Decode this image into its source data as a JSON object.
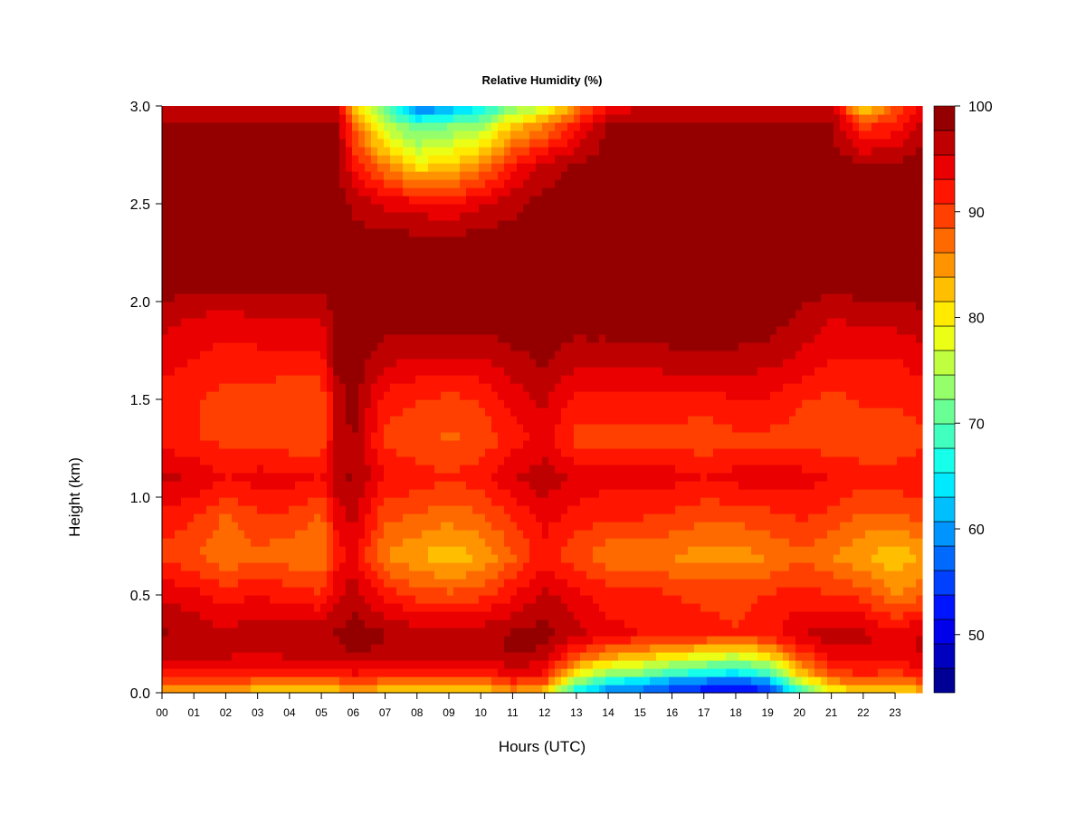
{
  "chart_data": {
    "type": "heatmap",
    "title": "Relative Humidity (%)",
    "xlabel": "Hours (UTC)",
    "ylabel": "Height (km)",
    "x_ticks": [
      "00",
      "01",
      "02",
      "03",
      "04",
      "05",
      "06",
      "07",
      "08",
      "09",
      "10",
      "11",
      "12",
      "13",
      "14",
      "15",
      "16",
      "17",
      "18",
      "19",
      "20",
      "21",
      "22",
      "23"
    ],
    "y_ticks": [
      "0.0",
      "0.5",
      "1.0",
      "1.5",
      "2.0",
      "2.5",
      "3.0"
    ],
    "xlim": [
      0,
      23.85
    ],
    "ylim": [
      0,
      3.0
    ],
    "x_hours": [
      0,
      1,
      2,
      3,
      4,
      5,
      5.5,
      6,
      7,
      8,
      9,
      10,
      11,
      12,
      13,
      14,
      15,
      16,
      17,
      18,
      19,
      20,
      21,
      22,
      23,
      23.85
    ],
    "y_km": [
      0,
      0.05,
      0.1,
      0.2,
      0.3,
      0.5,
      0.7,
      0.9,
      1.1,
      1.3,
      1.5,
      1.7,
      1.9,
      2.1,
      2.3,
      2.5,
      2.7,
      2.9,
      3.0
    ],
    "rh_columns": [
      [
        82,
        88,
        92,
        96,
        98,
        95,
        90,
        92,
        96,
        92,
        92,
        94,
        96,
        99,
        99,
        99,
        99,
        98,
        96
      ],
      [
        82,
        88,
        92,
        96,
        97,
        94,
        89,
        91,
        95,
        91,
        91,
        93,
        95,
        99,
        99,
        99,
        99,
        98,
        96
      ],
      [
        82,
        88,
        92,
        96,
        96,
        92,
        86,
        88,
        93,
        90,
        90,
        92,
        94,
        99,
        99,
        99,
        99,
        98,
        96
      ],
      [
        81,
        87,
        92,
        95,
        97,
        93,
        88,
        90,
        94,
        90,
        90,
        92,
        95,
        99,
        99,
        99,
        99,
        98,
        96
      ],
      [
        81,
        87,
        92,
        96,
        97,
        92,
        87,
        90,
        94,
        89,
        89,
        92,
        95,
        99,
        99,
        99,
        99,
        98,
        96
      ],
      [
        81,
        87,
        92,
        96,
        97,
        91,
        86,
        88,
        93,
        89,
        89,
        92,
        95,
        99,
        99,
        99,
        99,
        98,
        97
      ],
      [
        81,
        87,
        92,
        97,
        98,
        95,
        92,
        94,
        97,
        96,
        96,
        99,
        99,
        99,
        99,
        99,
        99,
        98,
        96
      ],
      [
        82,
        88,
        93,
        98,
        99,
        97,
        94,
        96,
        98,
        98,
        99,
        99,
        99,
        99,
        99,
        97,
        93,
        88,
        82
      ],
      [
        81,
        87,
        92,
        97,
        98,
        92,
        86,
        89,
        93,
        90,
        92,
        96,
        99,
        99,
        99,
        95,
        86,
        76,
        70
      ],
      [
        80,
        86,
        91,
        96,
        97,
        90,
        84,
        88,
        92,
        89,
        91,
        95,
        99,
        99,
        99,
        94,
        80,
        70,
        56
      ],
      [
        80,
        86,
        91,
        96,
        97,
        89,
        82,
        87,
        91,
        88,
        90,
        95,
        99,
        99,
        99,
        93,
        82,
        72,
        60
      ],
      [
        80,
        86,
        91,
        96,
        97,
        90,
        84,
        88,
        92,
        89,
        91,
        95,
        99,
        99,
        99,
        95,
        86,
        74,
        64
      ],
      [
        84,
        90,
        94,
        98,
        98,
        93,
        88,
        91,
        95,
        92,
        94,
        97,
        99,
        99,
        99,
        97,
        92,
        82,
        72
      ],
      [
        80,
        88,
        93,
        97,
        99,
        96,
        92,
        94,
        97,
        94,
        96,
        98,
        99,
        99,
        99,
        99,
        96,
        86,
        76
      ],
      [
        64,
        72,
        80,
        90,
        96,
        94,
        89,
        92,
        95,
        90,
        92,
        96,
        99,
        99,
        99,
        99,
        98,
        92,
        86
      ],
      [
        58,
        64,
        74,
        86,
        94,
        92,
        87,
        91,
        94,
        90,
        92,
        96,
        99,
        99,
        99,
        99,
        99,
        98,
        92
      ],
      [
        56,
        62,
        72,
        84,
        93,
        92,
        87,
        91,
        94,
        90,
        92,
        96,
        99,
        99,
        99,
        99,
        99,
        98,
        96
      ],
      [
        54,
        58,
        68,
        82,
        92,
        91,
        86,
        90,
        94,
        90,
        92,
        97,
        99,
        99,
        99,
        99,
        99,
        98,
        96
      ],
      [
        52,
        56,
        66,
        80,
        92,
        90,
        85,
        89,
        93,
        89,
        92,
        97,
        99,
        99,
        99,
        99,
        99,
        98,
        96
      ],
      [
        50,
        54,
        64,
        78,
        91,
        90,
        85,
        89,
        94,
        90,
        93,
        97,
        99,
        99,
        99,
        99,
        99,
        98,
        96
      ],
      [
        52,
        58,
        68,
        82,
        92,
        91,
        86,
        90,
        94,
        90,
        93,
        96,
        99,
        99,
        99,
        99,
        99,
        98,
        96
      ],
      [
        66,
        74,
        82,
        90,
        95,
        92,
        88,
        91,
        94,
        90,
        91,
        95,
        97,
        99,
        99,
        99,
        99,
        98,
        96
      ],
      [
        78,
        84,
        90,
        94,
        97,
        91,
        86,
        90,
        93,
        89,
        90,
        93,
        95,
        99,
        99,
        99,
        99,
        98,
        96
      ],
      [
        80,
        86,
        91,
        95,
        96,
        90,
        84,
        88,
        92,
        89,
        91,
        93,
        96,
        99,
        99,
        99,
        98,
        90,
        80
      ],
      [
        80,
        86,
        90,
        94,
        94,
        86,
        82,
        88,
        92,
        89,
        91,
        93,
        96,
        99,
        99,
        99,
        98,
        92,
        88
      ],
      [
        82,
        88,
        92,
        96,
        96,
        88,
        84,
        89,
        93,
        90,
        92,
        94,
        97,
        99,
        99,
        99,
        99,
        97,
        94
      ]
    ],
    "colorbar": {
      "min": 44.5,
      "max": 100,
      "levels": 24,
      "ticks": [
        100,
        90,
        80,
        70,
        60,
        50
      ],
      "tick_labels": [
        "100",
        "90",
        "80",
        "70",
        "60",
        "50"
      ]
    },
    "colors": [
      "#00007F",
      "#0000FF",
      "#007FFF",
      "#00FFFF",
      "#7FFF7F",
      "#FFFF00",
      "#FF7F00",
      "#FF0000",
      "#7F0000"
    ],
    "grid": false,
    "legend": "right colorbar"
  }
}
